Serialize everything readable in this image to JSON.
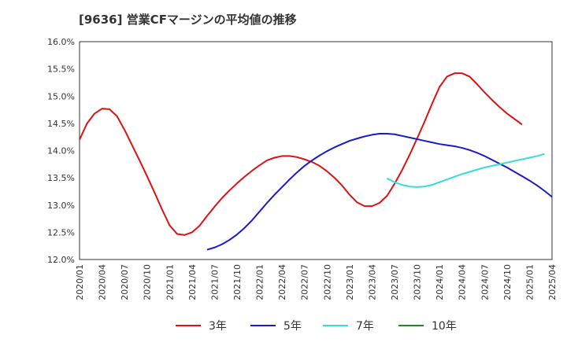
{
  "chart_data": {
    "type": "line",
    "title": "[9636]  営業CFマージンの平均値の推移",
    "xlabel": "",
    "ylabel": "",
    "ylim": [
      12.0,
      16.0
    ],
    "y_ticks": [
      12.0,
      12.5,
      13.0,
      13.5,
      14.0,
      14.5,
      15.0,
      15.5,
      16.0
    ],
    "y_tick_labels": [
      "12.0%",
      "12.5%",
      "13.0%",
      "13.5%",
      "14.0%",
      "14.5%",
      "15.0%",
      "15.5%",
      "16.0%"
    ],
    "x_tick_labels": [
      "2020/01",
      "2020/04",
      "2020/07",
      "2020/10",
      "2021/01",
      "2021/04",
      "2021/07",
      "2021/10",
      "2022/01",
      "2022/04",
      "2022/07",
      "2022/10",
      "2023/01",
      "2023/04",
      "2023/07",
      "2023/10",
      "2024/01",
      "2024/04",
      "2024/07",
      "2024/10",
      "2025/01",
      "2025/04"
    ],
    "grid": true,
    "legend_position": "bottom",
    "series": [
      {
        "name": "3年",
        "color": "#dd1111",
        "start": "2020/01",
        "values": [
          14.2,
          14.5,
          14.68,
          14.77,
          14.76,
          14.63,
          14.38,
          14.1,
          13.82,
          13.53,
          13.23,
          12.92,
          12.63,
          12.47,
          12.45,
          12.5,
          12.62,
          12.8,
          12.97,
          13.13,
          13.27,
          13.4,
          13.52,
          13.63,
          13.73,
          13.82,
          13.87,
          13.9,
          13.9,
          13.88,
          13.84,
          13.79,
          13.72,
          13.62,
          13.5,
          13.36,
          13.19,
          13.05,
          12.98,
          12.98,
          13.04,
          13.17,
          13.39,
          13.64,
          13.92,
          14.22,
          14.53,
          14.86,
          15.17,
          15.36,
          15.42,
          15.42,
          15.36,
          15.22,
          15.07,
          14.93,
          14.8,
          14.68,
          14.58,
          14.48
        ]
      },
      {
        "name": "5年",
        "color": "#1a1acc",
        "start": "2021/06",
        "values": [
          12.18,
          12.22,
          12.28,
          12.36,
          12.46,
          12.58,
          12.72,
          12.88,
          13.04,
          13.19,
          13.33,
          13.47,
          13.6,
          13.72,
          13.82,
          13.91,
          13.99,
          14.06,
          14.12,
          14.18,
          14.22,
          14.26,
          14.29,
          14.31,
          14.31,
          14.3,
          14.27,
          14.24,
          14.21,
          14.18,
          14.15,
          14.12,
          14.1,
          14.08,
          14.05,
          14.01,
          13.96,
          13.9,
          13.83,
          13.76,
          13.69,
          13.61,
          13.53,
          13.45,
          13.36,
          13.26,
          13.15
        ]
      },
      {
        "name": "7年",
        "color": "#33dddd",
        "start": "2023/06",
        "values": [
          13.49,
          13.42,
          13.37,
          13.34,
          13.33,
          13.34,
          13.37,
          13.42,
          13.47,
          13.52,
          13.57,
          13.61,
          13.65,
          13.69,
          13.72,
          13.75,
          13.78,
          13.81,
          13.84,
          13.87,
          13.9,
          13.94
        ]
      },
      {
        "name": "10年",
        "color": "#228822",
        "start": "",
        "values": []
      }
    ]
  }
}
